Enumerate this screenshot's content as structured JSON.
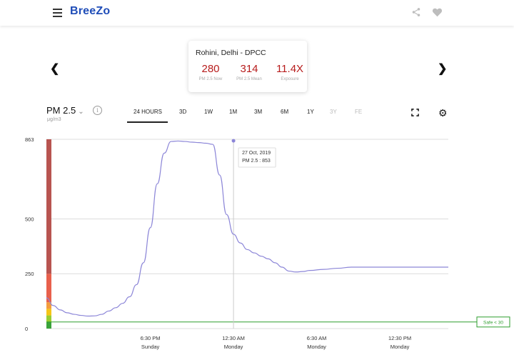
{
  "app": {
    "logo": "BreeZo",
    "menu_icon": "hamburger-menu-icon",
    "share_icon": "share-icon",
    "favorite_icon": "heart-icon"
  },
  "station": {
    "name": "Rohini, Delhi - DPCC",
    "stats": [
      {
        "value": "280",
        "label": "PM 2.5 Now"
      },
      {
        "value": "314",
        "label": "PM 2.5 Mean"
      },
      {
        "value": "11.4X",
        "label": "Exposure"
      }
    ],
    "value_color": "#b71c1c"
  },
  "pollutant": {
    "selected": "PM 2.5",
    "unit": "μg/m3",
    "info_glyph": "i"
  },
  "ranges": [
    {
      "label": "24 HOURS",
      "active": true,
      "enabled": true
    },
    {
      "label": "3D",
      "active": false,
      "enabled": true
    },
    {
      "label": "1W",
      "active": false,
      "enabled": true
    },
    {
      "label": "1M",
      "active": false,
      "enabled": true
    },
    {
      "label": "3M",
      "active": false,
      "enabled": true
    },
    {
      "label": "6M",
      "active": false,
      "enabled": true
    },
    {
      "label": "1Y",
      "active": false,
      "enabled": true
    },
    {
      "label": "3Y",
      "active": false,
      "enabled": false
    },
    {
      "label": "FE",
      "active": false,
      "enabled": false
    }
  ],
  "chart_data": {
    "type": "line",
    "series": [
      {
        "x": [
          0,
          0.5,
          1,
          1.5,
          2,
          2.5,
          3,
          3.5,
          4,
          4.5,
          5,
          5.5,
          6,
          6.5,
          7,
          7.5,
          8,
          8.5,
          9,
          9.5,
          10,
          10.5,
          11,
          11.5,
          12,
          12.5,
          13,
          13.5,
          14,
          14.5,
          15,
          15.5,
          16,
          16.5,
          17,
          17.5,
          18,
          18.5,
          19,
          20,
          21,
          22,
          23,
          24,
          25,
          26,
          27,
          28,
          29
        ],
        "values": [
          140,
          105,
          85,
          72,
          65,
          60,
          57,
          58,
          65,
          80,
          95,
          115,
          145,
          200,
          300,
          460,
          660,
          800,
          853,
          855,
          853,
          850,
          848,
          845,
          840,
          700,
          520,
          430,
          390,
          360,
          345,
          330,
          318,
          300,
          280,
          262,
          258,
          260,
          265,
          270,
          275,
          280,
          280,
          280,
          280,
          280,
          280,
          280,
          280
        ]
      }
    ],
    "x_ticks": [
      {
        "at": 7.5,
        "time": "6:30 PM",
        "day": "Sunday"
      },
      {
        "at": 13.5,
        "time": "12:30 AM",
        "day": "Monday"
      },
      {
        "at": 19.5,
        "time": "6:30 AM",
        "day": "Monday"
      },
      {
        "at": 25.5,
        "time": "12:30 PM",
        "day": "Monday"
      }
    ],
    "x_range": [
      0,
      29
    ],
    "y_ticks": [
      "0",
      "250",
      "500",
      "863"
    ],
    "ylim": [
      0,
      863
    ],
    "grid": true,
    "tooltip": {
      "at": 13.5,
      "date": "27 Oct, 2019",
      "text": "PM 2.5 : 853"
    },
    "safe_line": {
      "value": 30,
      "label": "Safe < 30",
      "color": "#2e9e2e"
    },
    "aqi_bands": [
      {
        "to": 30,
        "color": "#3aa33a"
      },
      {
        "to": 60,
        "color": "#9acd32"
      },
      {
        "to": 90,
        "color": "#f5c518"
      },
      {
        "to": 120,
        "color": "#f39c3d"
      },
      {
        "to": 250,
        "color": "#e8604c"
      },
      {
        "to": 863,
        "color": "#b85450"
      }
    ],
    "line_color": "#8c86d8"
  }
}
